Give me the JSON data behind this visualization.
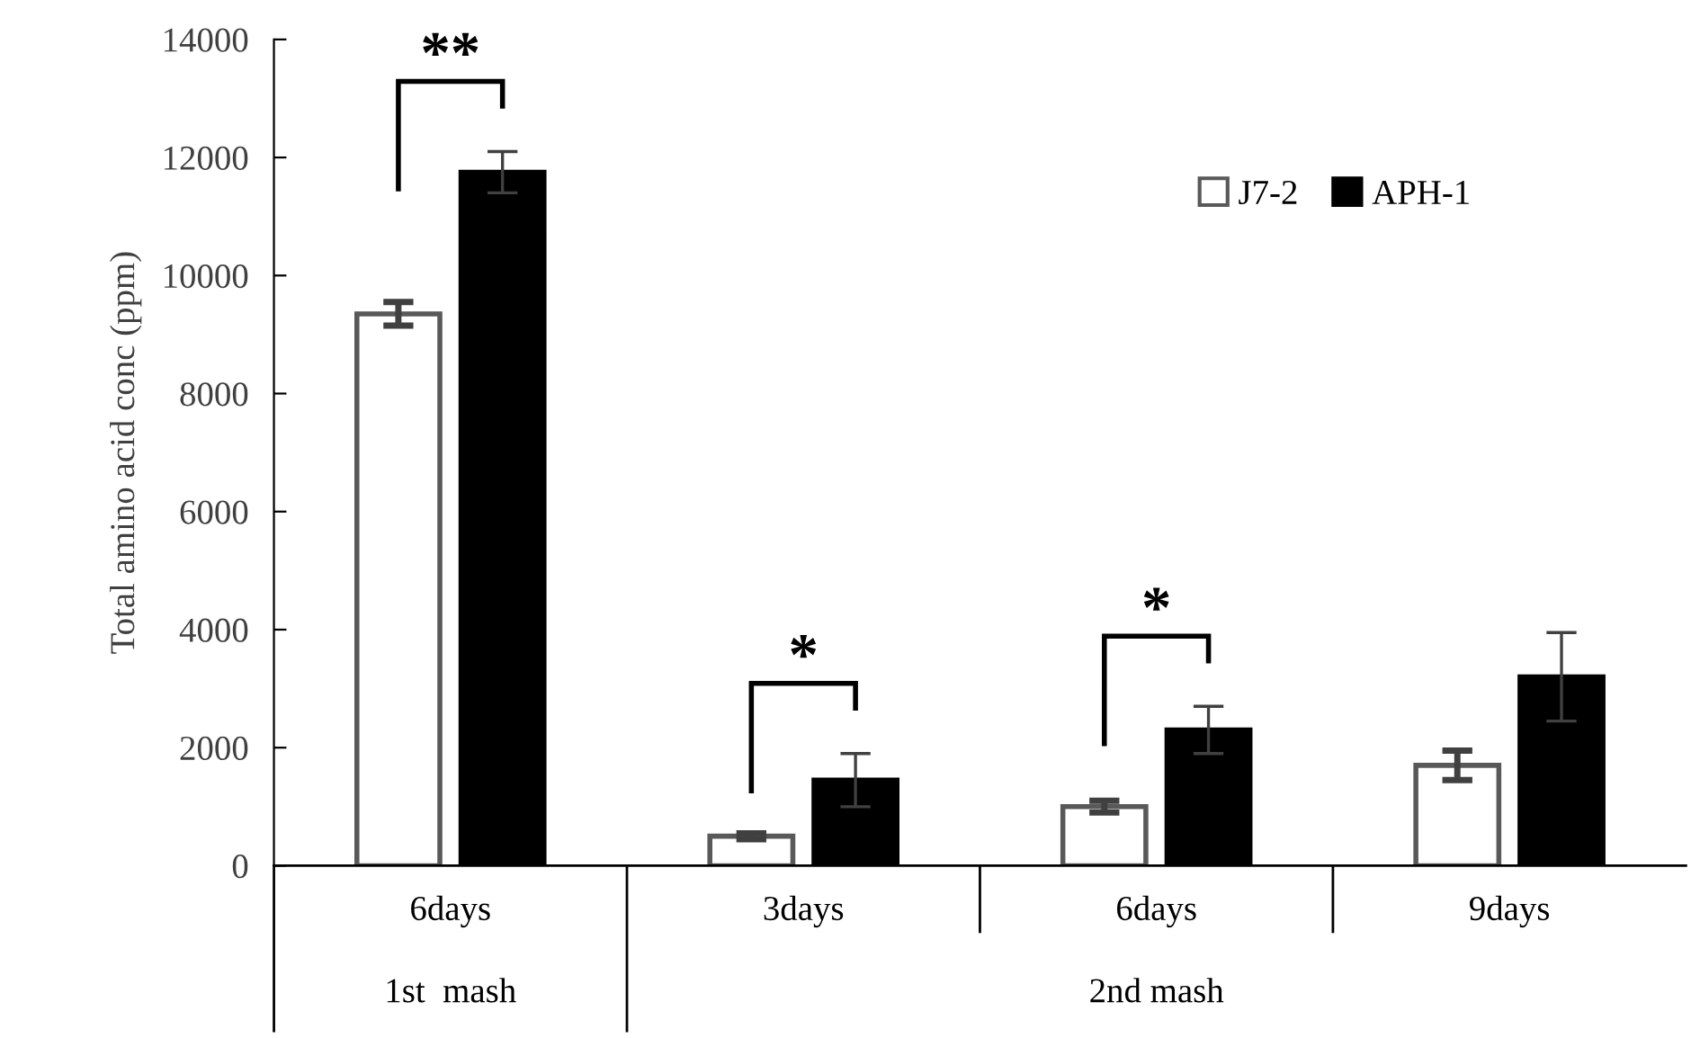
{
  "chart_data": {
    "type": "bar",
    "ylabel": "Total amino acid conc (ppm)",
    "categories": [
      "6days",
      "3days",
      "6days",
      "9days"
    ],
    "series": [
      {
        "name": "J7-2",
        "color": "#ffffff",
        "values": [
          9350,
          500,
          1000,
          1700
        ],
        "errors": [
          200,
          50,
          100,
          250
        ]
      },
      {
        "name": "APH-1",
        "color": "#000000",
        "values": [
          11750,
          1450,
          2300,
          3200
        ],
        "errors": [
          350,
          450,
          400,
          750
        ]
      }
    ],
    "ylim": [
      0,
      14000
    ],
    "yticks": [
      0,
      2000,
      4000,
      6000,
      8000,
      10000,
      12000,
      14000
    ],
    "grid": false,
    "legend": "top right",
    "annotations": [
      "**",
      "*",
      "*",
      "1st  mash",
      "2nd mash"
    ]
  }
}
